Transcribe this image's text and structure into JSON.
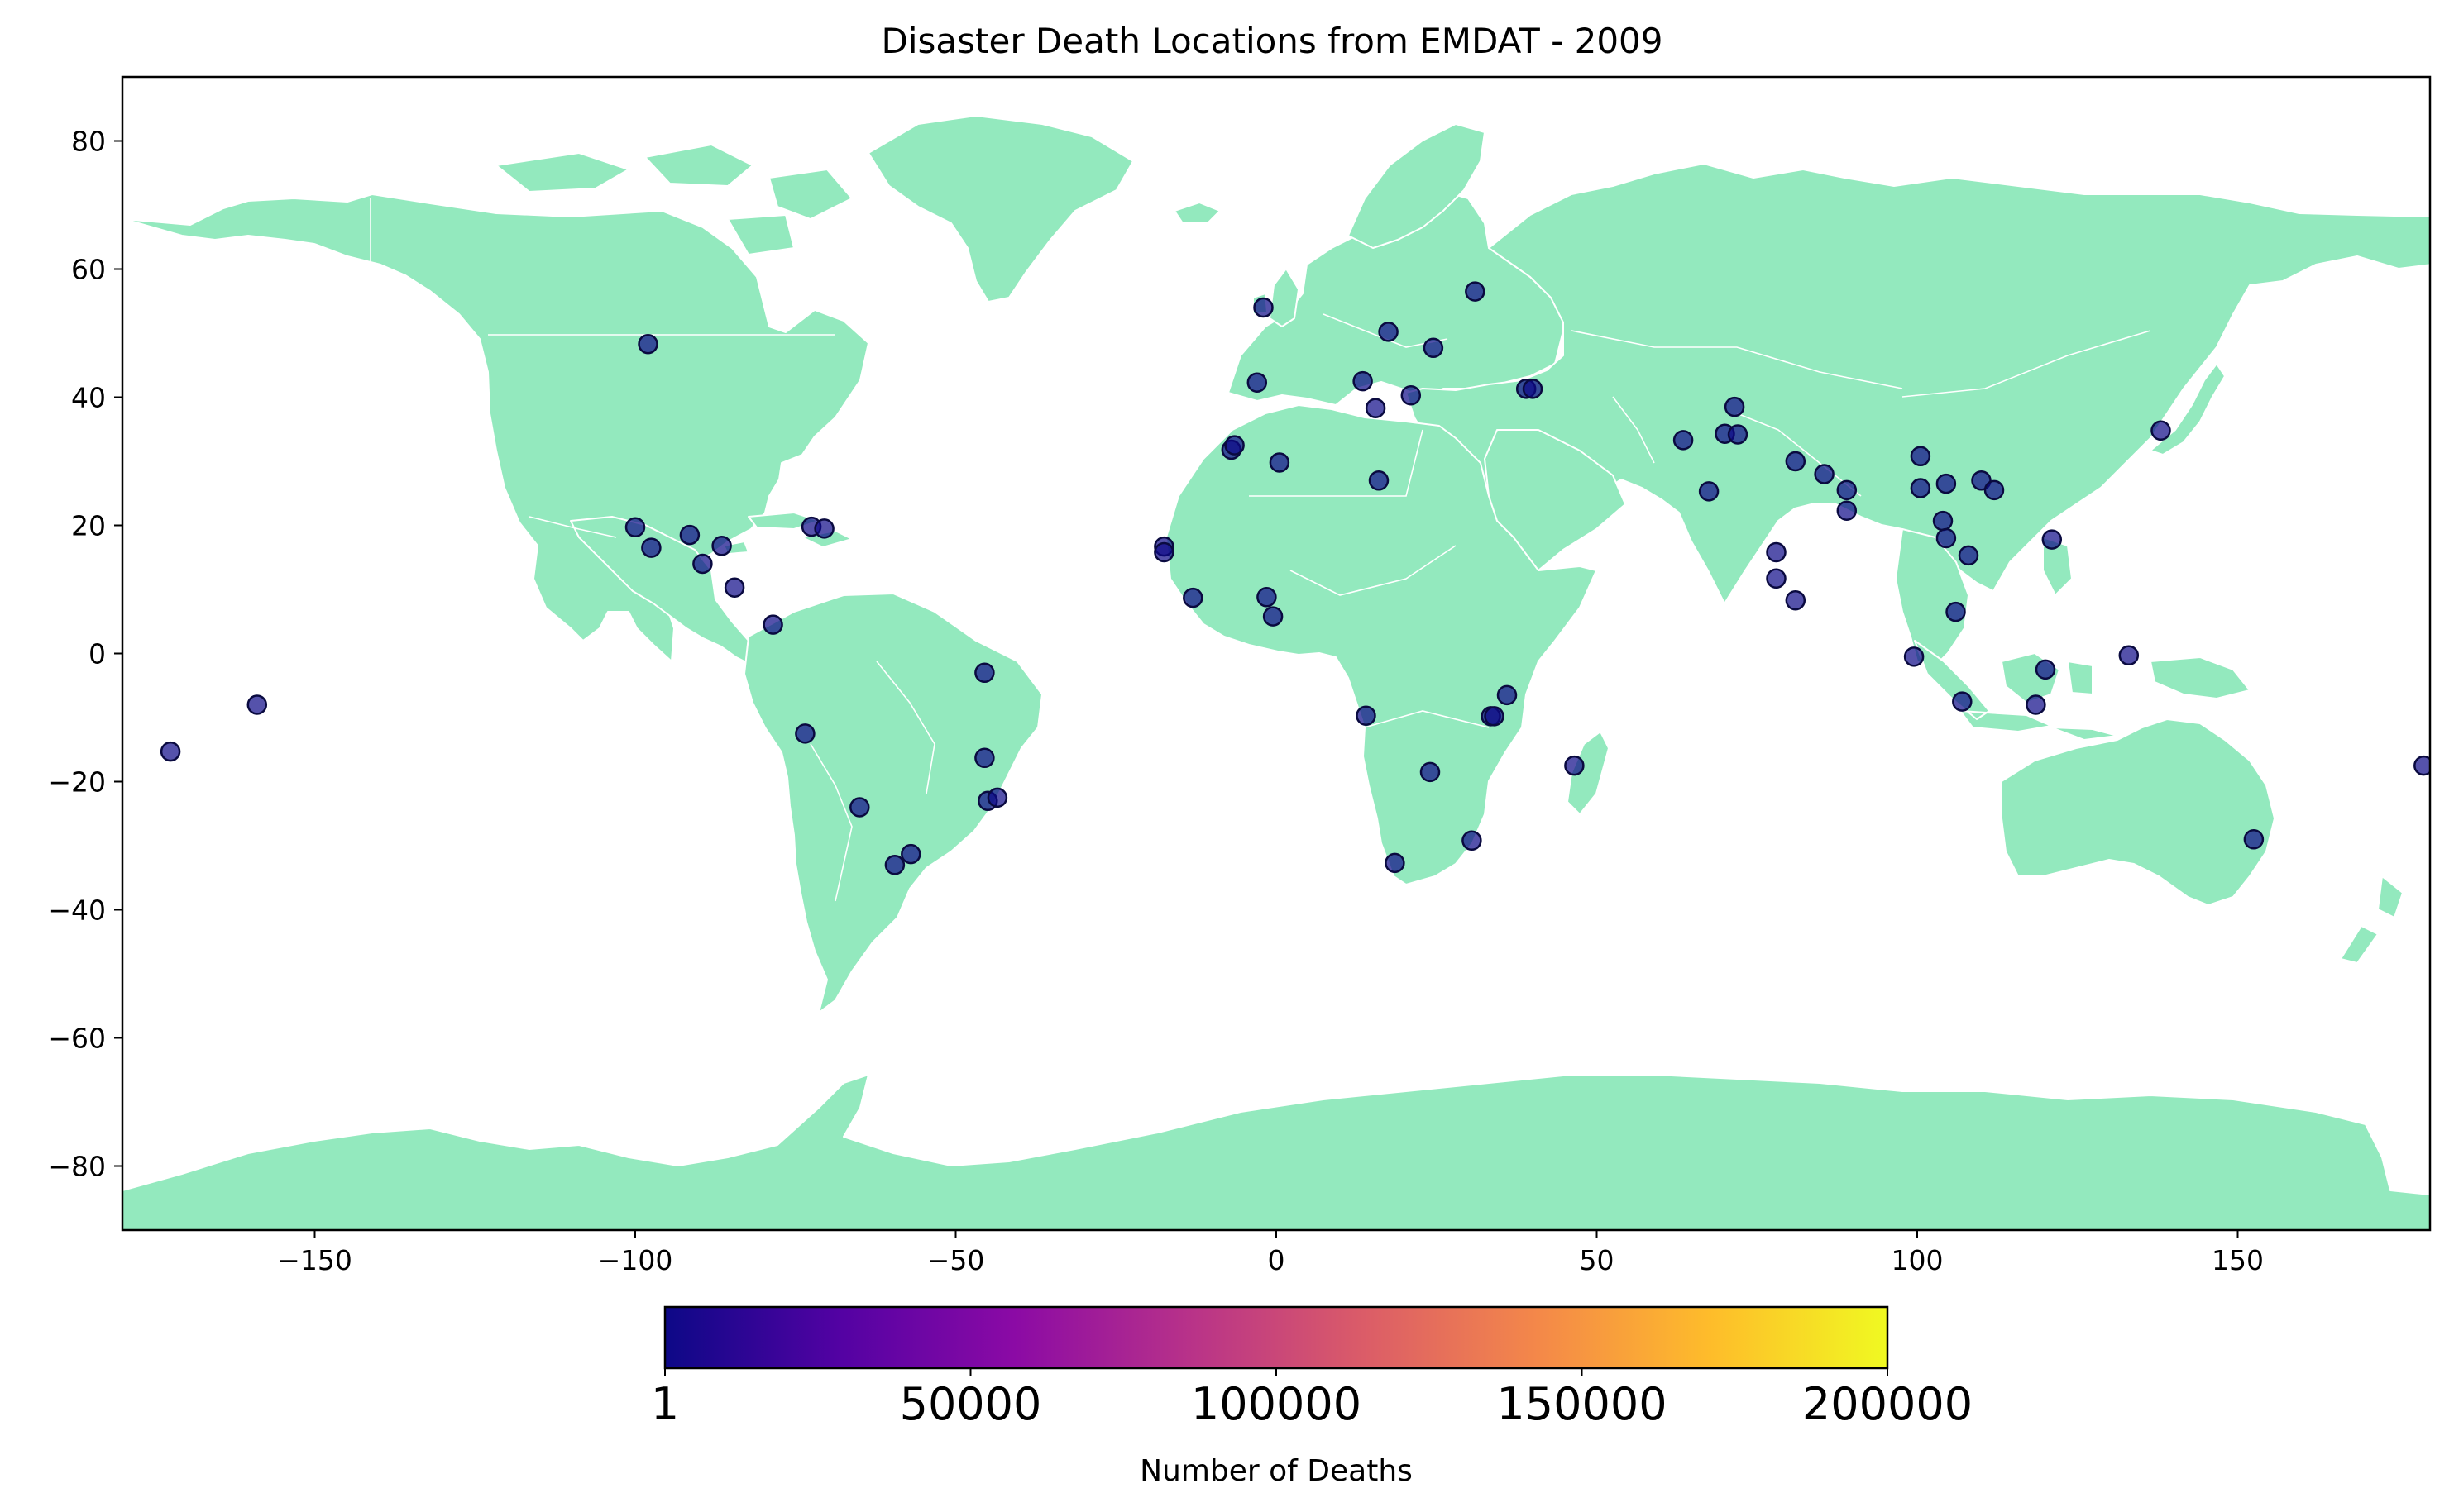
{
  "title": "Disaster Death Locations from EMDAT - 2009",
  "colors": {
    "land": "#93e9be",
    "border": "#ffffff",
    "marker_fill": "#0d0887",
    "marker_edge": "#0a0a40",
    "axes": "#000000"
  },
  "colorbar": {
    "label": "Number of Deaths",
    "min": 1,
    "max": 200000,
    "ticks": [
      {
        "value": 1,
        "label": "1"
      },
      {
        "value": 50000,
        "label": "50000"
      },
      {
        "value": 100000,
        "label": "100000"
      },
      {
        "value": 150000,
        "label": "150000"
      },
      {
        "value": 200000,
        "label": "200000"
      }
    ],
    "colormap": "plasma",
    "stops": [
      "#0d0887",
      "#5302a3",
      "#8b0aa5",
      "#b83289",
      "#db5c68",
      "#f48849",
      "#febd2a",
      "#f0f921"
    ]
  },
  "chart_data": {
    "type": "scatter",
    "title": "Disaster Death Locations from EMDAT - 2009",
    "xlabel": "",
    "ylabel": "",
    "xlim": [
      -180,
      180
    ],
    "ylim": [
      -90,
      90
    ],
    "xticks": [
      {
        "value": -150,
        "label": "−150"
      },
      {
        "value": -100,
        "label": "−100"
      },
      {
        "value": -50,
        "label": "−50"
      },
      {
        "value": 0,
        "label": "0"
      },
      {
        "value": 50,
        "label": "50"
      },
      {
        "value": 100,
        "label": "100"
      },
      {
        "value": 150,
        "label": "150"
      }
    ],
    "yticks": [
      {
        "value": 80,
        "label": "80"
      },
      {
        "value": 60,
        "label": "60"
      },
      {
        "value": 40,
        "label": "40"
      },
      {
        "value": 20,
        "label": "20"
      },
      {
        "value": 0,
        "label": "0"
      },
      {
        "value": -20,
        "label": "−20"
      },
      {
        "value": -40,
        "label": "−40"
      },
      {
        "value": -60,
        "label": "−60"
      },
      {
        "value": -80,
        "label": "−80"
      }
    ],
    "points": [
      [
        -172.5,
        -15.3
      ],
      [
        -159,
        -8
      ],
      [
        -98,
        48.3
      ],
      [
        -100,
        19.7
      ],
      [
        -97.5,
        16.5
      ],
      [
        -91.5,
        18.5
      ],
      [
        -89.5,
        14
      ],
      [
        -86.5,
        16.8
      ],
      [
        -84.5,
        10.3
      ],
      [
        -78.5,
        4.5
      ],
      [
        -73.5,
        -12.5
      ],
      [
        -72.5,
        19.8
      ],
      [
        -70.5,
        19.5
      ],
      [
        -45.5,
        -3
      ],
      [
        -45.5,
        -16.3
      ],
      [
        -45,
        -23
      ],
      [
        -43.5,
        -22.5
      ],
      [
        -65,
        -24
      ],
      [
        -59.5,
        -33
      ],
      [
        -57,
        -31.3
      ],
      [
        -17.5,
        16.7
      ],
      [
        -17.5,
        15.8
      ],
      [
        -13,
        8.7
      ],
      [
        -7,
        31.8
      ],
      [
        -6.5,
        32.5
      ],
      [
        0.5,
        29.8
      ],
      [
        -2,
        54
      ],
      [
        -3,
        42.3
      ],
      [
        -1.5,
        8.8
      ],
      [
        -0.5,
        5.8
      ],
      [
        13.5,
        42.5
      ],
      [
        15.5,
        38.3
      ],
      [
        17.5,
        50.2
      ],
      [
        21,
        40.3
      ],
      [
        24.5,
        47.7
      ],
      [
        31,
        56.5
      ],
      [
        39,
        41.3
      ],
      [
        40,
        41.3
      ],
      [
        16,
        27
      ],
      [
        14,
        -9.7
      ],
      [
        24,
        -18.5
      ],
      [
        18.5,
        -32.7
      ],
      [
        30.5,
        -29.2
      ],
      [
        33.5,
        -9.8
      ],
      [
        34,
        -9.8
      ],
      [
        36,
        -6.5
      ],
      [
        46.5,
        -17.5
      ],
      [
        63.5,
        33.3
      ],
      [
        67.5,
        25.3
      ],
      [
        70,
        34.3
      ],
      [
        71.5,
        38.5
      ],
      [
        72,
        34.2
      ],
      [
        81,
        30
      ],
      [
        85.5,
        28
      ],
      [
        89,
        25.5
      ],
      [
        89,
        22.3
      ],
      [
        78,
        15.8
      ],
      [
        78,
        11.7
      ],
      [
        81,
        8.3
      ],
      [
        100.5,
        30.8
      ],
      [
        100.5,
        25.8
      ],
      [
        104.5,
        26.5
      ],
      [
        104,
        20.7
      ],
      [
        104.5,
        18
      ],
      [
        108,
        15.3
      ],
      [
        110,
        27
      ],
      [
        112,
        25.5
      ],
      [
        106,
        6.5
      ],
      [
        99.5,
        -0.5
      ],
      [
        107,
        -7.5
      ],
      [
        118.5,
        -8
      ],
      [
        120,
        -2.5
      ],
      [
        121,
        17.8
      ],
      [
        133,
        -0.3
      ],
      [
        138,
        34.8
      ],
      [
        152.5,
        -29
      ],
      [
        179,
        -17.5
      ]
    ]
  }
}
